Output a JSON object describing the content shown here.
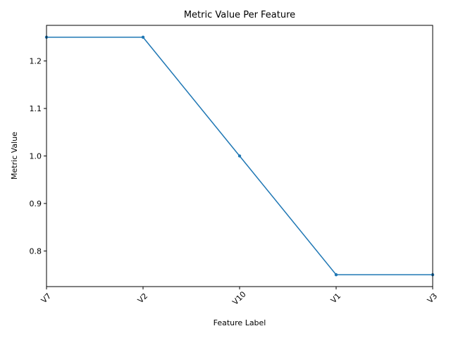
{
  "chart_data": {
    "type": "line",
    "title": "Metric Value Per Feature",
    "xlabel": "Feature Label",
    "ylabel": "Metric Value",
    "categories": [
      "V7",
      "V2",
      "V10",
      "V1",
      "V3"
    ],
    "series": [
      {
        "values": [
          1.25,
          1.25,
          1.0,
          0.75,
          0.75
        ]
      }
    ],
    "ylim": [
      0.725,
      1.275
    ],
    "yticks": [
      0.8,
      0.9,
      1.0,
      1.1,
      1.2
    ],
    "ytick_labels": [
      "0.8",
      "0.9",
      "1.0",
      "1.1",
      "1.2"
    ],
    "grid": false,
    "legend": "none",
    "line_color": "#1f77b4",
    "marker": "point",
    "xtick_rotation_deg": 45
  }
}
